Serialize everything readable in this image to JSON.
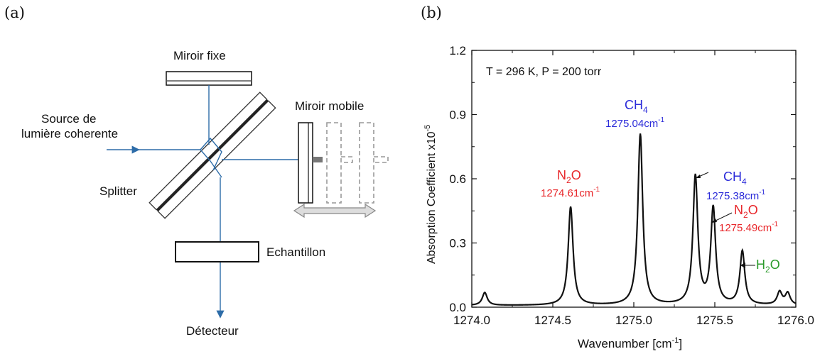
{
  "panel_a": {
    "label": "(a)",
    "fixed_mirror": "Miroir fixe",
    "mobile_mirror": "Miroir mobile",
    "source_line1": "Source de",
    "source_line2": "lumière coherente",
    "splitter": "Splitter",
    "sample": "Echantillon",
    "detector": "Détecteur"
  },
  "panel_b": {
    "label": "(b)",
    "colors": {
      "n2o": "#e8262a",
      "ch4": "#2b2bd9",
      "h2o": "#2a9a2a",
      "line": "#111111"
    },
    "chart_data": {
      "type": "line",
      "annotation_conditions": "T = 296 K, P = 200 torr",
      "xlabel": "Wavenumber [cm",
      "xlabel_sup": "-1",
      "xlabel_close": "]",
      "ylabel": "Absorption Coefficient x10",
      "ylabel_sup": "-5",
      "xlim": [
        1274.0,
        1276.0
      ],
      "ylim": [
        0.0,
        1.2
      ],
      "xticks": [
        "1274.0",
        "1274.5",
        "1275.0",
        "1275.5",
        "1276.0"
      ],
      "xtick_values": [
        1274.0,
        1274.5,
        1275.0,
        1275.5,
        1276.0
      ],
      "yticks": [
        "0.0",
        "0.3",
        "0.6",
        "0.9",
        "1.2"
      ],
      "ytick_values": [
        0.0,
        0.3,
        0.6,
        0.9,
        1.2
      ],
      "peaks": [
        {
          "x": 1274.61,
          "y": 0.46
        },
        {
          "x": 1275.04,
          "y": 0.8
        },
        {
          "x": 1275.38,
          "y": 0.6
        },
        {
          "x": 1275.49,
          "y": 0.45
        },
        {
          "x": 1275.67,
          "y": 0.25
        }
      ],
      "small_peaks": [
        {
          "x": 1274.08,
          "y": 0.06
        },
        {
          "x": 1275.9,
          "y": 0.06
        },
        {
          "x": 1275.95,
          "y": 0.055
        }
      ],
      "labels": {
        "n2o_a": {
          "species": "N",
          "sub": "2",
          "tail": "O",
          "value": "1274.61cm",
          "sup": "-1"
        },
        "ch4_a": {
          "species": "CH",
          "sub": "4",
          "value": "1275.04cm",
          "sup": "-1"
        },
        "ch4_b": {
          "species": "CH",
          "sub": "4",
          "value": "1275.38cm",
          "sup": "-1"
        },
        "n2o_b": {
          "species": "N",
          "sub": "2",
          "tail": "O",
          "value": "1275.49cm",
          "sup": "-1"
        },
        "h2o": {
          "species": "H",
          "sub": "2",
          "tail": "O"
        }
      }
    }
  }
}
